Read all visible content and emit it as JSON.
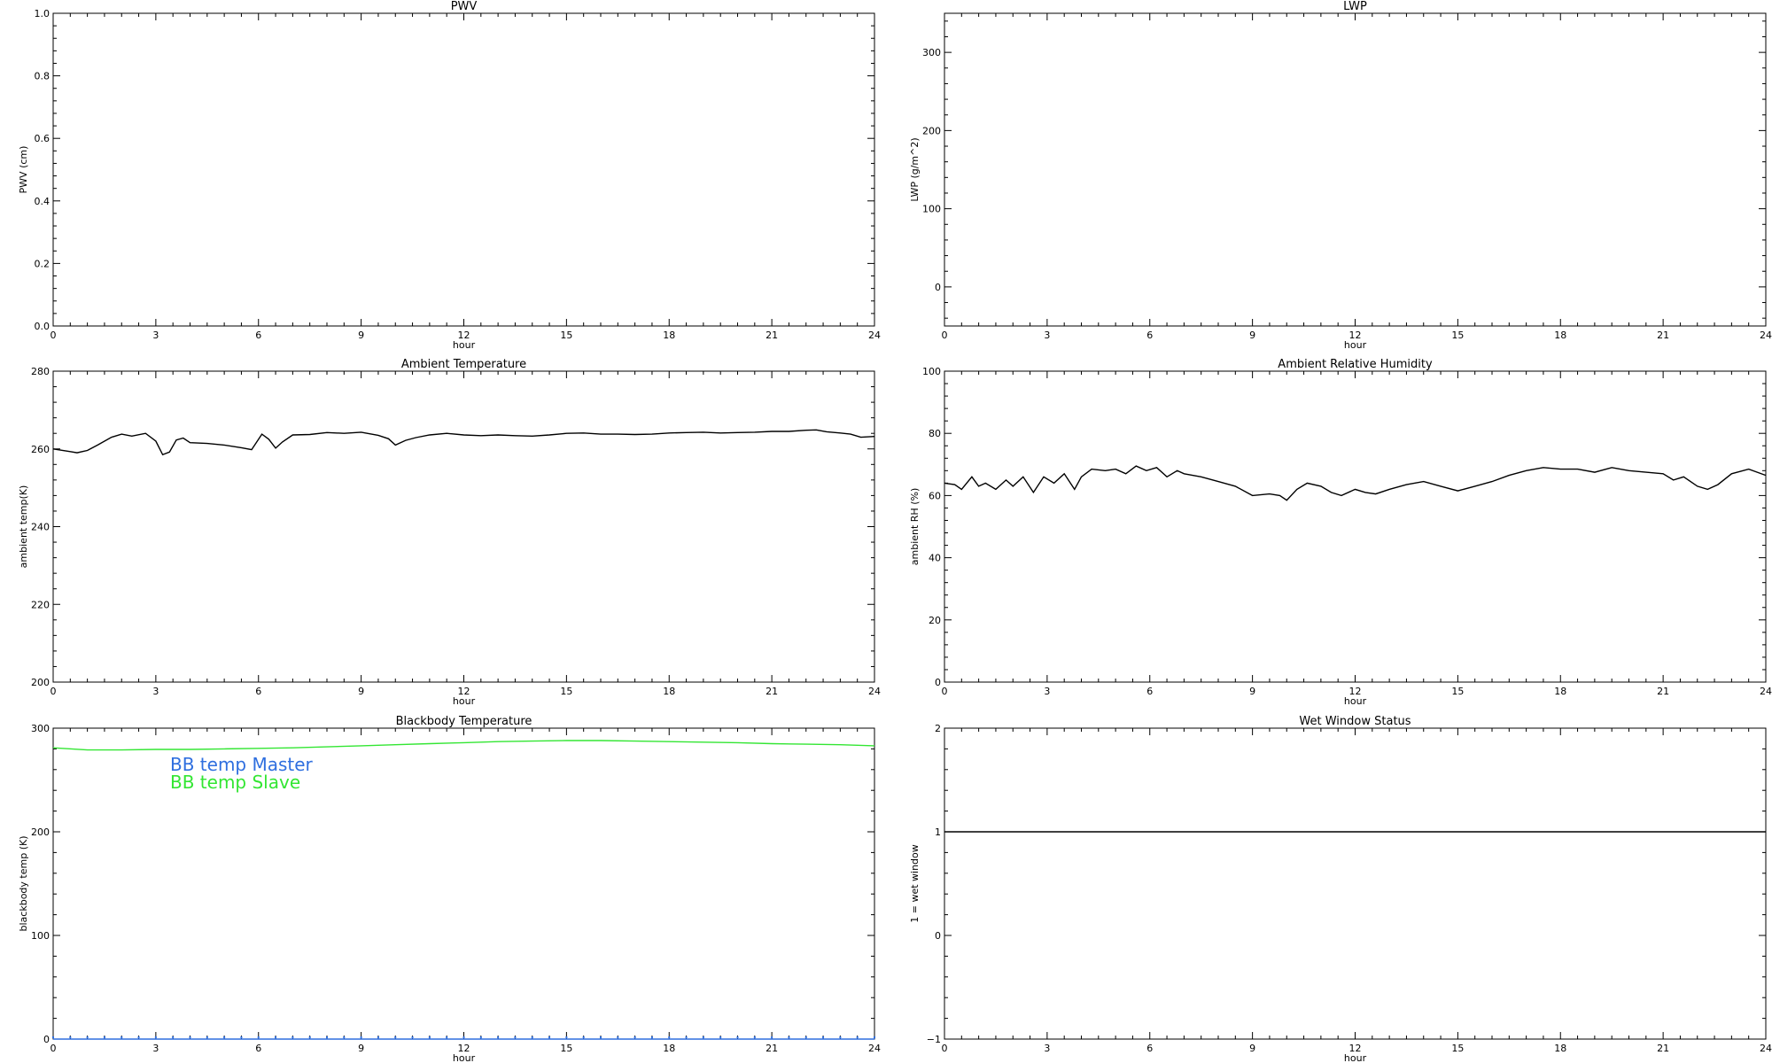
{
  "chart_data": [
    {
      "id": "pwv",
      "type": "line",
      "title": "PWV",
      "xlabel": "hour",
      "ylabel": "PWV (cm)",
      "xlim": [
        0,
        24
      ],
      "ylim": [
        0,
        1
      ],
      "xticks": [
        0,
        3,
        6,
        9,
        12,
        15,
        18,
        21,
        24
      ],
      "xtick_labels": [
        "0",
        "3",
        "6",
        "9",
        "12",
        "15",
        "18",
        "21",
        "24"
      ],
      "yticks": [
        0,
        0.2,
        0.4,
        0.6,
        0.8,
        1.0
      ],
      "ytick_labels": [
        "0.0",
        "0.2",
        "0.4",
        "0.6",
        "0.8",
        "1.0"
      ],
      "grid": false,
      "series": []
    },
    {
      "id": "lwp",
      "type": "line",
      "title": "LWP",
      "xlabel": "hour",
      "ylabel": "LWP (g/m^2)",
      "xlim": [
        0,
        24
      ],
      "ylim": [
        -50,
        350
      ],
      "xticks": [
        0,
        3,
        6,
        9,
        12,
        15,
        18,
        21,
        24
      ],
      "xtick_labels": [
        "0",
        "3",
        "6",
        "9",
        "12",
        "15",
        "18",
        "21",
        "24"
      ],
      "yticks": [
        0,
        100,
        200,
        300
      ],
      "ytick_labels": [
        "0",
        "100",
        "200",
        "300"
      ],
      "grid": false,
      "series": []
    },
    {
      "id": "temp",
      "type": "line",
      "title": "Ambient Temperature",
      "xlabel": "hour",
      "ylabel": "ambient temp(K)",
      "xlim": [
        0,
        24
      ],
      "ylim": [
        200,
        280
      ],
      "xticks": [
        0,
        3,
        6,
        9,
        12,
        15,
        18,
        21,
        24
      ],
      "xtick_labels": [
        "0",
        "3",
        "6",
        "9",
        "12",
        "15",
        "18",
        "21",
        "24"
      ],
      "yticks": [
        200,
        220,
        240,
        260,
        280
      ],
      "ytick_labels": [
        "200",
        "220",
        "240",
        "260",
        "280"
      ],
      "grid": false,
      "series": [
        {
          "color": "#000000",
          "x": [
            0,
            0.5,
            0.7,
            1.0,
            1.3,
            1.7,
            2.0,
            2.3,
            2.7,
            3.0,
            3.2,
            3.4,
            3.6,
            3.8,
            4.0,
            4.5,
            5.0,
            5.5,
            5.8,
            6.1,
            6.3,
            6.5,
            6.7,
            7.0,
            7.5,
            8.0,
            8.5,
            9.0,
            9.5,
            9.8,
            10.0,
            10.3,
            10.6,
            11.0,
            11.5,
            12.0,
            12.5,
            13.0,
            13.5,
            14.0,
            14.5,
            15.0,
            15.5,
            16.0,
            16.5,
            17.0,
            17.5,
            18.0,
            18.5,
            19.0,
            19.5,
            20.0,
            20.5,
            21.0,
            21.5,
            22.0,
            22.3,
            22.6,
            23.0,
            23.3,
            23.6,
            24.0
          ],
          "y": [
            260,
            259.3,
            259.0,
            259.6,
            261.0,
            263.0,
            263.8,
            263.3,
            264.0,
            262.0,
            258.5,
            259.2,
            262.3,
            262.8,
            261.6,
            261.4,
            261.0,
            260.3,
            259.8,
            263.8,
            262.5,
            260.2,
            261.8,
            263.6,
            263.7,
            264.2,
            264.0,
            264.3,
            263.5,
            262.6,
            261.0,
            262.2,
            262.9,
            263.6,
            264.0,
            263.6,
            263.4,
            263.6,
            263.4,
            263.3,
            263.6,
            264.0,
            264.1,
            263.8,
            263.8,
            263.7,
            263.8,
            264.1,
            264.2,
            264.3,
            264.1,
            264.2,
            264.3,
            264.5,
            264.5,
            264.8,
            264.9,
            264.4,
            264.1,
            263.8,
            263.0,
            263.2
          ]
        }
      ]
    },
    {
      "id": "rh",
      "type": "line",
      "title": "Ambient Relative Humidity",
      "xlabel": "hour",
      "ylabel": "ambient RH (%)",
      "xlim": [
        0,
        24
      ],
      "ylim": [
        0,
        100
      ],
      "xticks": [
        0,
        3,
        6,
        9,
        12,
        15,
        18,
        21,
        24
      ],
      "xtick_labels": [
        "0",
        "3",
        "6",
        "9",
        "12",
        "15",
        "18",
        "21",
        "24"
      ],
      "yticks": [
        0,
        20,
        40,
        60,
        80,
        100
      ],
      "ytick_labels": [
        "0",
        "20",
        "40",
        "60",
        "80",
        "100"
      ],
      "grid": false,
      "series": [
        {
          "color": "#000000",
          "x": [
            0,
            0.3,
            0.5,
            0.8,
            1.0,
            1.2,
            1.5,
            1.8,
            2.0,
            2.3,
            2.6,
            2.9,
            3.2,
            3.5,
            3.8,
            4.0,
            4.3,
            4.7,
            5.0,
            5.3,
            5.6,
            5.9,
            6.2,
            6.5,
            6.8,
            7.0,
            7.5,
            8.0,
            8.5,
            9.0,
            9.5,
            9.8,
            10.0,
            10.3,
            10.6,
            11.0,
            11.3,
            11.6,
            12.0,
            12.3,
            12.6,
            13.0,
            13.5,
            14.0,
            14.5,
            15.0,
            15.5,
            16.0,
            16.5,
            17.0,
            17.5,
            18.0,
            18.5,
            19.0,
            19.5,
            20.0,
            20.5,
            21.0,
            21.3,
            21.6,
            22.0,
            22.3,
            22.6,
            23.0,
            23.5,
            24.0
          ],
          "y": [
            64,
            63.5,
            62,
            66,
            63,
            64,
            62,
            65,
            63,
            66,
            61,
            66,
            64,
            67,
            62,
            66,
            68.5,
            68,
            68.5,
            67,
            69.5,
            68,
            69,
            66,
            68,
            67,
            66,
            64.5,
            63,
            60,
            60.5,
            60,
            58.5,
            62,
            64,
            63,
            61,
            60,
            62,
            61,
            60.5,
            62,
            63.5,
            64.5,
            63,
            61.5,
            63,
            64.5,
            66.5,
            68,
            69,
            68.5,
            68.5,
            67.5,
            69,
            68,
            67.5,
            67,
            65,
            66,
            63,
            62,
            63.5,
            67,
            68.5,
            66.5
          ]
        }
      ]
    },
    {
      "id": "bb",
      "type": "line",
      "title": "Blackbody Temperature",
      "xlabel": "hour",
      "ylabel": "blackbody temp (K)",
      "xlim": [
        0,
        24
      ],
      "ylim": [
        0,
        300
      ],
      "xticks": [
        0,
        3,
        6,
        9,
        12,
        15,
        18,
        21,
        24
      ],
      "xtick_labels": [
        "0",
        "3",
        "6",
        "9",
        "12",
        "15",
        "18",
        "21",
        "24"
      ],
      "yticks": [
        0,
        100,
        200,
        300
      ],
      "ytick_labels": [
        "0",
        "100",
        "200",
        "300"
      ],
      "grid": false,
      "legend": "top-left",
      "series": [
        {
          "name": "BB temp Master",
          "color": "#2f6fdf",
          "x": [
            0,
            1,
            2,
            3,
            4,
            5,
            6,
            7,
            8,
            9,
            10,
            11,
            12,
            13,
            14,
            15,
            16,
            17,
            18,
            19,
            20,
            21,
            22,
            23,
            24
          ],
          "y": [
            0,
            0,
            0,
            0,
            0,
            0,
            0,
            0,
            0,
            0,
            0,
            0,
            0,
            0,
            0,
            0,
            0,
            0,
            0,
            0,
            0,
            0,
            0,
            0,
            0
          ]
        },
        {
          "name": "BB temp Slave",
          "color": "#33e633",
          "x": [
            0,
            1,
            2,
            3,
            4,
            5,
            6,
            7,
            8,
            9,
            10,
            11,
            12,
            13,
            14,
            15,
            16,
            17,
            18,
            19,
            20,
            21,
            22,
            23,
            24
          ],
          "y": [
            281,
            279,
            279,
            279.5,
            279.5,
            280,
            280.5,
            281,
            282,
            283,
            284,
            285,
            286,
            287,
            287.5,
            288,
            288,
            287.5,
            287,
            286.5,
            286,
            285,
            284.5,
            284,
            283
          ]
        }
      ]
    },
    {
      "id": "wet",
      "type": "line",
      "title": "Wet Window Status",
      "xlabel": "hour",
      "ylabel": "1 = wet window",
      "xlim": [
        0,
        24
      ],
      "ylim": [
        -1,
        2
      ],
      "xticks": [
        0,
        3,
        6,
        9,
        12,
        15,
        18,
        21,
        24
      ],
      "xtick_labels": [
        "0",
        "3",
        "6",
        "9",
        "12",
        "15",
        "18",
        "21",
        "24"
      ],
      "yticks": [
        -1,
        0,
        1,
        2
      ],
      "ytick_labels": [
        "−1",
        "0",
        "1",
        "2"
      ],
      "grid": false,
      "series": [
        {
          "color": "#000000",
          "x": [
            0,
            24
          ],
          "y": [
            1,
            1
          ]
        }
      ]
    }
  ]
}
